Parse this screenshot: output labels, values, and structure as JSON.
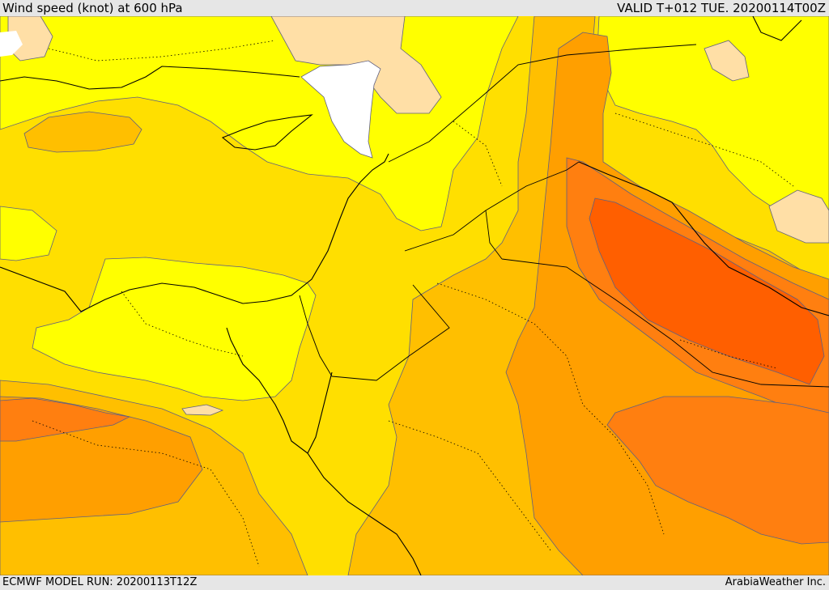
{
  "header": {
    "title": "Wind speed (knot) at 600 hPa",
    "valid_time": "VALID T+012 TUE. 20200114T00Z"
  },
  "footer": {
    "model_run": "ECMWF MODEL RUN: 20200113T12Z",
    "credit": "ArabiaWeather Inc."
  },
  "map": {
    "colors": {
      "band_light": "#ffdfa6",
      "band_yellow": "#ffff00",
      "band_gold": "#ffdf00",
      "band_amber": "#ffbf00",
      "band_orange": "#ff9f00",
      "band_deep_orange": "#ff7f10",
      "band_red_orange": "#ff5f00",
      "land_mask": "#ffffff",
      "contour": "#606080",
      "coast": "#000000"
    }
  }
}
